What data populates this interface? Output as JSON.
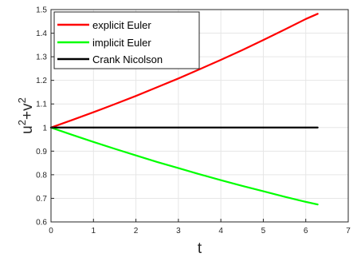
{
  "chart_data": {
    "type": "line",
    "xlabel": "t",
    "ylabel": "u",
    "ylabel_parts": [
      "u",
      "2",
      "+v",
      "2"
    ],
    "xlim": [
      0,
      7
    ],
    "ylim": [
      0.6,
      1.5
    ],
    "xticks": [
      0,
      1,
      2,
      3,
      4,
      5,
      6,
      7
    ],
    "yticks": [
      0.6,
      0.7,
      0.8,
      0.9,
      1,
      1.1,
      1.2,
      1.3,
      1.4,
      1.5
    ],
    "grid": true,
    "legend_position": "top-left",
    "series": [
      {
        "name": "explicit Euler",
        "color": "#ff0000",
        "x": [
          0,
          0.5,
          1,
          1.5,
          2,
          2.5,
          3,
          3.5,
          4,
          4.5,
          5,
          5.5,
          6,
          6.28
        ],
        "y": [
          1,
          1.032,
          1.065,
          1.099,
          1.134,
          1.171,
          1.208,
          1.247,
          1.287,
          1.328,
          1.371,
          1.415,
          1.46,
          1.482
        ]
      },
      {
        "name": "implicit Euler",
        "color": "#00ff00",
        "x": [
          0,
          0.5,
          1,
          1.5,
          2,
          2.5,
          3,
          3.5,
          4,
          4.5,
          5,
          5.5,
          6,
          6.28
        ],
        "y": [
          1,
          0.969,
          0.939,
          0.91,
          0.882,
          0.854,
          0.828,
          0.802,
          0.777,
          0.753,
          0.73,
          0.707,
          0.685,
          0.674
        ]
      },
      {
        "name": "Crank Nicolson",
        "color": "#000000",
        "x": [
          0,
          6.28
        ],
        "y": [
          1,
          1
        ]
      }
    ]
  }
}
